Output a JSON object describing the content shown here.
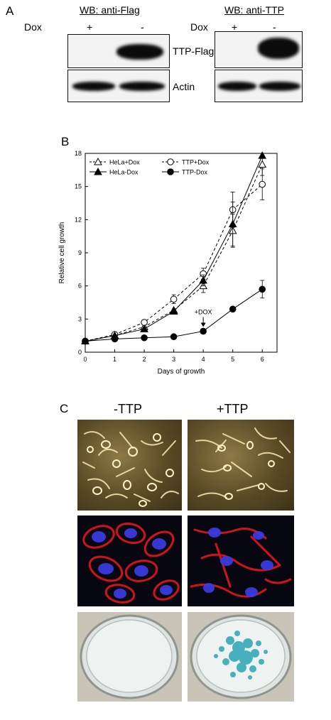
{
  "panel_a": {
    "letter": "A",
    "dox_label": "Dox",
    "left_title": "WB: anti-Flag",
    "right_title": "WB: anti-TTP",
    "plus": "+",
    "minus": "-",
    "ttp_flag_label": "TTP-Flag",
    "actin_label": "Actin"
  },
  "panel_b": {
    "letter": "B"
  },
  "panel_c": {
    "letter": "C",
    "col_minus": "-TTP",
    "col_plus": "+TTP"
  },
  "chart_data": {
    "type": "line",
    "xlabel": "Days of growth",
    "ylabel": "Relative cell growth",
    "xlim": [
      0,
      6.5
    ],
    "ylim": [
      0,
      18
    ],
    "xticks": [
      0,
      1,
      2,
      3,
      4,
      5,
      6
    ],
    "yticks": [
      0,
      3,
      6,
      9,
      12,
      15,
      18
    ],
    "legend_position": "top-left",
    "annotation": {
      "text": "+DOX",
      "x": 4,
      "y": 1.9
    },
    "series": [
      {
        "name": "HeLa+Dox",
        "marker": "open-triangle",
        "line": "dashed",
        "x": [
          0,
          1,
          2,
          3,
          4,
          5,
          6
        ],
        "y": [
          1.0,
          1.5,
          2.3,
          3.8,
          6.0,
          11.0,
          17.0
        ],
        "err": [
          0,
          0,
          0,
          0,
          0.6,
          1.5,
          1.0
        ]
      },
      {
        "name": "TTP+Dox",
        "marker": "open-circle",
        "line": "dashed",
        "x": [
          0,
          1,
          2,
          3,
          4,
          5,
          6
        ],
        "y": [
          1.0,
          1.6,
          2.7,
          4.8,
          7.1,
          12.9,
          15.2
        ],
        "err": [
          0,
          0,
          0,
          0.4,
          0.5,
          1.6,
          1.4
        ]
      },
      {
        "name": "HeLa-Dox",
        "marker": "filled-triangle",
        "line": "solid",
        "x": [
          0,
          1,
          2,
          3,
          4,
          5,
          6
        ],
        "y": [
          1.0,
          1.5,
          2.1,
          3.7,
          6.5,
          11.6,
          17.8
        ],
        "err": [
          0,
          0,
          0,
          0,
          0.5,
          2.0,
          0
        ]
      },
      {
        "name": "TTP-Dox",
        "marker": "filled-circle",
        "line": "solid",
        "x": [
          0,
          1,
          2,
          3,
          4,
          5,
          6
        ],
        "y": [
          1.0,
          1.2,
          1.3,
          1.4,
          1.9,
          3.9,
          5.7
        ],
        "err": [
          0,
          0,
          0,
          0,
          0,
          0,
          0.8
        ]
      }
    ]
  }
}
